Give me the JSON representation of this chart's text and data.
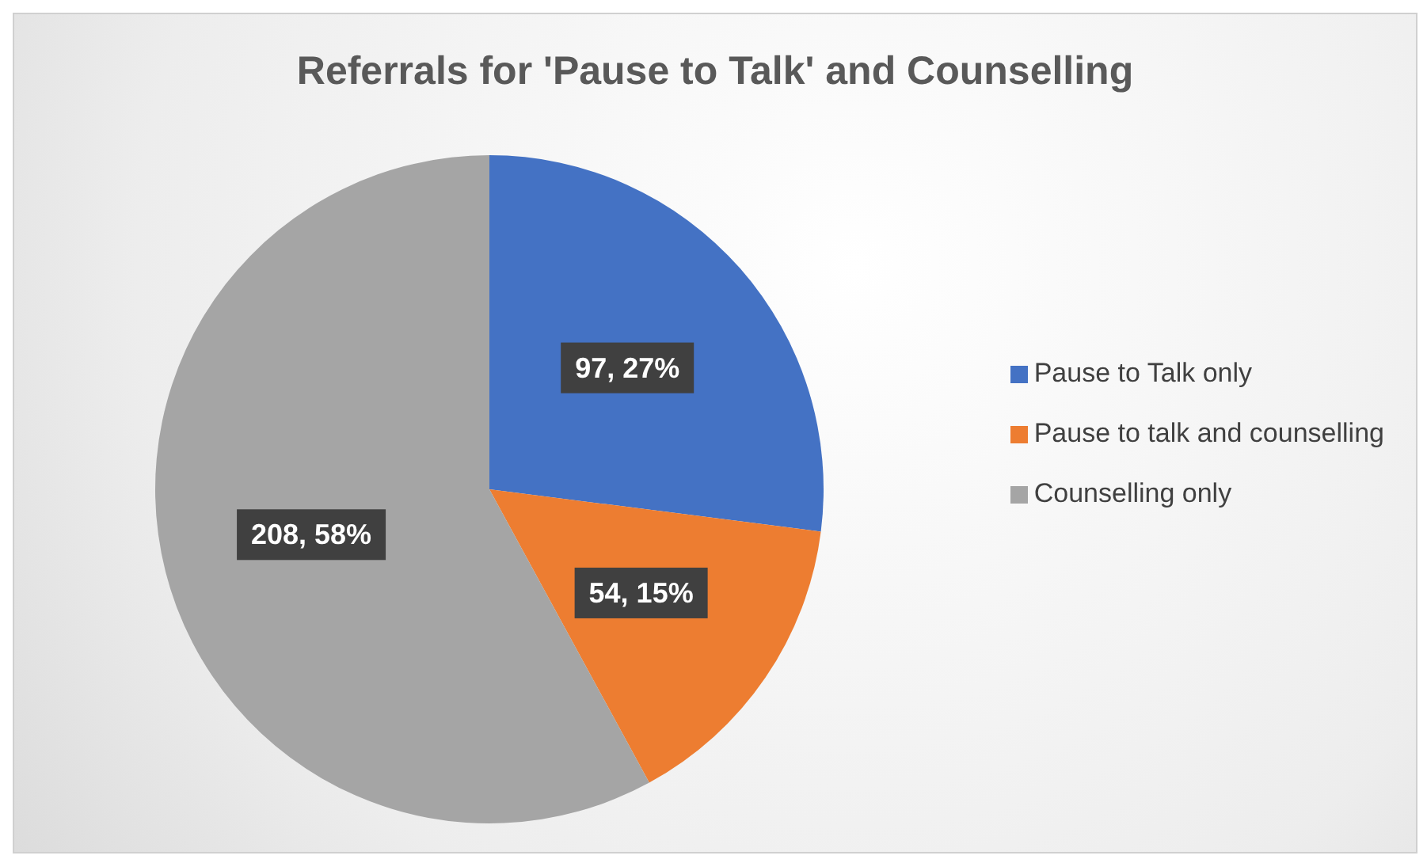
{
  "chart_data": {
    "type": "pie",
    "title": "Referrals for 'Pause to Talk' and Counselling",
    "categories": [
      "Pause to Talk only",
      "Pause to talk and counselling",
      "Counselling only"
    ],
    "values": [
      97,
      54,
      208
    ],
    "colors": [
      "#4472c4",
      "#ed7d31",
      "#a5a5a5"
    ],
    "value_labels": [
      "97, 27%",
      "54, 15%",
      "208, 58%"
    ],
    "legend": "right"
  }
}
